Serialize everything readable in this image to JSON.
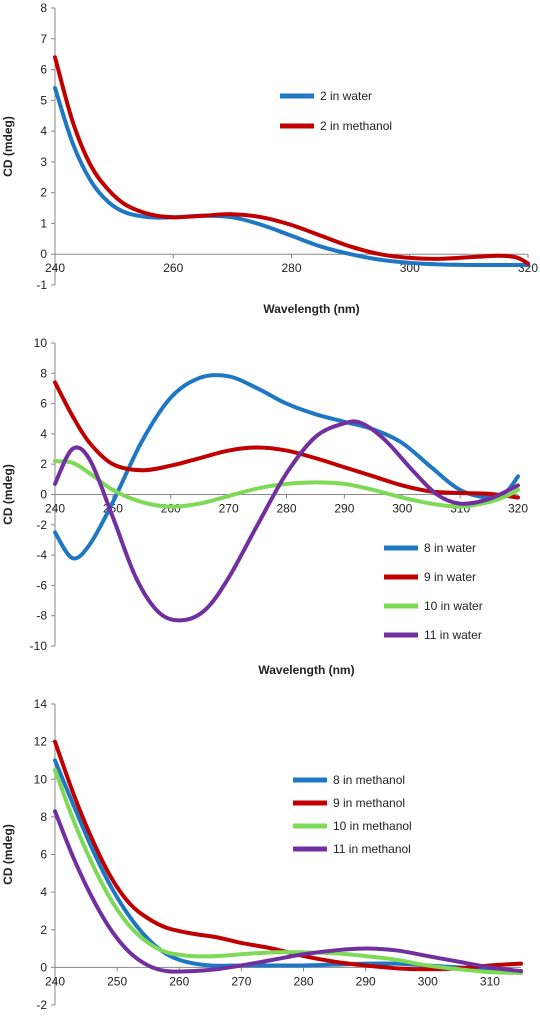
{
  "chart_data": [
    {
      "type": "line",
      "title": "",
      "xlabel": "Wavelength (nm)",
      "ylabel": "CD (mdeg)",
      "xlim": [
        240,
        320
      ],
      "ylim": [
        -1,
        8
      ],
      "x_ticks": [
        240,
        260,
        280,
        300,
        320
      ],
      "y_ticks": [
        -1,
        0,
        1,
        2,
        3,
        4,
        5,
        6,
        7,
        8
      ],
      "x_ticks_labels": [
        "240",
        "260",
        "280",
        "300",
        "320"
      ],
      "y_ticks_labels": [
        "-1",
        "0",
        "1",
        "2",
        "3",
        "4",
        "5",
        "6",
        "7",
        "8"
      ],
      "legend": "center-right",
      "grid": false,
      "series": [
        {
          "name": "2 in water",
          "color": "#1f77c4",
          "points": [
            [
              240,
              5.4
            ],
            [
              243,
              3.6
            ],
            [
              246,
              2.4
            ],
            [
              249,
              1.7
            ],
            [
              252,
              1.35
            ],
            [
              256,
              1.2
            ],
            [
              260,
              1.2
            ],
            [
              265,
              1.25
            ],
            [
              270,
              1.2
            ],
            [
              275,
              0.95
            ],
            [
              280,
              0.6
            ],
            [
              285,
              0.25
            ],
            [
              290,
              0.0
            ],
            [
              295,
              -0.18
            ],
            [
              300,
              -0.28
            ],
            [
              305,
              -0.33
            ],
            [
              310,
              -0.35
            ],
            [
              315,
              -0.35
            ],
            [
              320,
              -0.35
            ]
          ]
        },
        {
          "name": "2 in methanol",
          "color": "#c00000",
          "points": [
            [
              240,
              6.4
            ],
            [
              243,
              4.3
            ],
            [
              246,
              2.9
            ],
            [
              249,
              2.1
            ],
            [
              252,
              1.6
            ],
            [
              256,
              1.3
            ],
            [
              260,
              1.2
            ],
            [
              265,
              1.25
            ],
            [
              270,
              1.3
            ],
            [
              275,
              1.2
            ],
            [
              280,
              0.95
            ],
            [
              285,
              0.6
            ],
            [
              290,
              0.25
            ],
            [
              295,
              0.0
            ],
            [
              300,
              -0.12
            ],
            [
              305,
              -0.15
            ],
            [
              310,
              -0.1
            ],
            [
              315,
              -0.05
            ],
            [
              318,
              -0.1
            ],
            [
              320,
              -0.3
            ]
          ]
        }
      ]
    },
    {
      "type": "line",
      "title": "",
      "xlabel": "Wavelength (nm)",
      "ylabel": "CD (mdeg)",
      "xlim": [
        240,
        320
      ],
      "ylim": [
        -10,
        10
      ],
      "x_ticks": [
        240,
        250,
        260,
        270,
        280,
        290,
        300,
        310,
        320
      ],
      "y_ticks": [
        -10,
        -8,
        -6,
        -4,
        -2,
        0,
        2,
        4,
        6,
        8,
        10
      ],
      "x_ticks_labels": [
        "240",
        "250",
        "260",
        "270",
        "280",
        "290",
        "300",
        "310",
        "320"
      ],
      "y_ticks_labels": [
        "-10",
        "-8",
        "-6",
        "-4",
        "-2",
        "0",
        "2",
        "4",
        "6",
        "8",
        "10"
      ],
      "legend": "bottom-right",
      "grid": false,
      "series": [
        {
          "name": "8 in water",
          "color": "#1f77c4",
          "points": [
            [
              240,
              -2.5
            ],
            [
              243,
              -4.2
            ],
            [
              246,
              -3.3
            ],
            [
              250,
              -0.5
            ],
            [
              255,
              3.5
            ],
            [
              260,
              6.4
            ],
            [
              265,
              7.7
            ],
            [
              270,
              7.8
            ],
            [
              275,
              7.0
            ],
            [
              280,
              6.0
            ],
            [
              285,
              5.3
            ],
            [
              290,
              4.8
            ],
            [
              295,
              4.3
            ],
            [
              300,
              3.4
            ],
            [
              305,
              1.8
            ],
            [
              310,
              0.3
            ],
            [
              315,
              -0.2
            ],
            [
              318,
              0.2
            ],
            [
              320,
              1.2
            ]
          ]
        },
        {
          "name": "9 in water",
          "color": "#c00000",
          "points": [
            [
              240,
              7.4
            ],
            [
              243,
              5.2
            ],
            [
              246,
              3.4
            ],
            [
              250,
              2.0
            ],
            [
              255,
              1.6
            ],
            [
              260,
              1.9
            ],
            [
              265,
              2.4
            ],
            [
              270,
              2.9
            ],
            [
              275,
              3.1
            ],
            [
              280,
              2.9
            ],
            [
              285,
              2.4
            ],
            [
              290,
              1.8
            ],
            [
              295,
              1.2
            ],
            [
              300,
              0.6
            ],
            [
              305,
              0.2
            ],
            [
              310,
              0.1
            ],
            [
              315,
              0.05
            ],
            [
              320,
              -0.2
            ]
          ]
        },
        {
          "name": "10 in water",
          "color": "#7ed957",
          "points": [
            [
              240,
              2.2
            ],
            [
              243,
              2.1
            ],
            [
              246,
              1.4
            ],
            [
              250,
              0.3
            ],
            [
              255,
              -0.5
            ],
            [
              260,
              -0.8
            ],
            [
              265,
              -0.6
            ],
            [
              270,
              -0.1
            ],
            [
              275,
              0.4
            ],
            [
              280,
              0.7
            ],
            [
              285,
              0.8
            ],
            [
              290,
              0.7
            ],
            [
              295,
              0.3
            ],
            [
              300,
              -0.2
            ],
            [
              305,
              -0.6
            ],
            [
              310,
              -0.8
            ],
            [
              315,
              -0.5
            ],
            [
              318,
              -0.1
            ],
            [
              320,
              0.3
            ]
          ]
        },
        {
          "name": "11 in water",
          "color": "#7030a0",
          "points": [
            [
              240,
              0.7
            ],
            [
              243,
              3.0
            ],
            [
              246,
              2.3
            ],
            [
              250,
              -1.5
            ],
            [
              254,
              -5.5
            ],
            [
              258,
              -7.8
            ],
            [
              262,
              -8.3
            ],
            [
              266,
              -7.6
            ],
            [
              270,
              -5.5
            ],
            [
              275,
              -2.0
            ],
            [
              280,
              1.4
            ],
            [
              285,
              3.8
            ],
            [
              290,
              4.7
            ],
            [
              293,
              4.7
            ],
            [
              297,
              3.6
            ],
            [
              302,
              1.5
            ],
            [
              306,
              0.0
            ],
            [
              310,
              -0.6
            ],
            [
              315,
              -0.3
            ],
            [
              320,
              0.6
            ]
          ]
        }
      ]
    },
    {
      "type": "line",
      "title": "",
      "xlabel": "Wavelength (nm)",
      "ylabel": "CD (mdeg)",
      "xlim": [
        240,
        315
      ],
      "ylim": [
        -2,
        14
      ],
      "x_ticks": [
        240,
        250,
        260,
        270,
        280,
        290,
        300,
        310
      ],
      "y_ticks": [
        -2,
        0,
        2,
        4,
        6,
        8,
        10,
        12,
        14
      ],
      "x_ticks_labels": [
        "240",
        "250",
        "260",
        "270",
        "280",
        "290",
        "300",
        "310"
      ],
      "y_ticks_labels": [
        "-2",
        "0",
        "2",
        "4",
        "6",
        "8",
        "10",
        "12",
        "14"
      ],
      "legend": "center-right",
      "grid": false,
      "series": [
        {
          "name": "8 in methanol",
          "color": "#1f77c4",
          "points": [
            [
              240,
              11.0
            ],
            [
              243,
              8.6
            ],
            [
              246,
              6.3
            ],
            [
              249,
              4.3
            ],
            [
              252,
              2.7
            ],
            [
              255,
              1.5
            ],
            [
              258,
              0.7
            ],
            [
              261,
              0.3
            ],
            [
              265,
              0.1
            ],
            [
              270,
              0.1
            ],
            [
              275,
              0.1
            ],
            [
              280,
              0.1
            ],
            [
              285,
              0.15
            ],
            [
              290,
              0.2
            ],
            [
              295,
              0.2
            ],
            [
              300,
              0.1
            ],
            [
              305,
              0.0
            ],
            [
              310,
              -0.1
            ],
            [
              315,
              -0.2
            ]
          ]
        },
        {
          "name": "9 in methanol",
          "color": "#c00000",
          "points": [
            [
              240,
              12.0
            ],
            [
              243,
              9.2
            ],
            [
              246,
              6.8
            ],
            [
              249,
              4.8
            ],
            [
              252,
              3.4
            ],
            [
              255,
              2.6
            ],
            [
              258,
              2.1
            ],
            [
              262,
              1.8
            ],
            [
              266,
              1.6
            ],
            [
              270,
              1.3
            ],
            [
              275,
              1.0
            ],
            [
              280,
              0.6
            ],
            [
              285,
              0.3
            ],
            [
              290,
              0.1
            ],
            [
              295,
              -0.05
            ],
            [
              300,
              -0.1
            ],
            [
              305,
              -0.05
            ],
            [
              310,
              0.1
            ],
            [
              315,
              0.2
            ]
          ]
        },
        {
          "name": "10 in methanol",
          "color": "#7ed957",
          "points": [
            [
              240,
              10.5
            ],
            [
              243,
              7.8
            ],
            [
              246,
              5.5
            ],
            [
              249,
              3.6
            ],
            [
              252,
              2.2
            ],
            [
              255,
              1.3
            ],
            [
              258,
              0.8
            ],
            [
              262,
              0.6
            ],
            [
              266,
              0.6
            ],
            [
              270,
              0.7
            ],
            [
              275,
              0.8
            ],
            [
              280,
              0.8
            ],
            [
              285,
              0.75
            ],
            [
              290,
              0.6
            ],
            [
              295,
              0.4
            ],
            [
              300,
              0.1
            ],
            [
              305,
              -0.1
            ],
            [
              310,
              -0.25
            ],
            [
              315,
              -0.3
            ]
          ]
        },
        {
          "name": "11 in methanol",
          "color": "#7030a0",
          "points": [
            [
              240,
              8.3
            ],
            [
              243,
              5.8
            ],
            [
              246,
              3.7
            ],
            [
              249,
              2.0
            ],
            [
              252,
              0.8
            ],
            [
              255,
              0.1
            ],
            [
              258,
              -0.2
            ],
            [
              262,
              -0.2
            ],
            [
              266,
              -0.1
            ],
            [
              270,
              0.1
            ],
            [
              275,
              0.4
            ],
            [
              280,
              0.7
            ],
            [
              285,
              0.9
            ],
            [
              290,
              1.0
            ],
            [
              295,
              0.9
            ],
            [
              300,
              0.6
            ],
            [
              305,
              0.3
            ],
            [
              310,
              0.0
            ],
            [
              315,
              -0.2
            ]
          ]
        }
      ]
    }
  ]
}
